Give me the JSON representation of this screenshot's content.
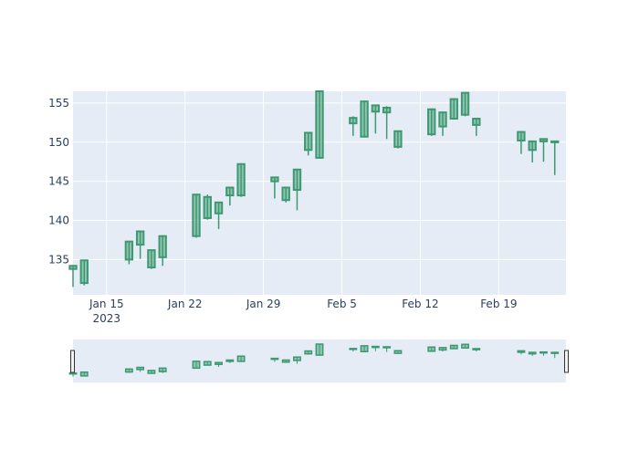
{
  "chart_data": {
    "type": "candlestick",
    "title": "",
    "xlabel": "",
    "ylabel": "",
    "x_range": [
      "2023-01-12",
      "2023-02-25"
    ],
    "ylim": [
      130.5,
      156.5
    ],
    "grid": true,
    "legend": "none",
    "rangeslider": true,
    "colors": {
      "plot_bg": "#e5ecf6",
      "grid": "#ffffff",
      "increasing_fill": "#3d9970",
      "increasing_line": "#3d9970",
      "tick_text": "#2a3f5f",
      "slider_bg": "#e5ecf6"
    },
    "y_ticks": [
      "135",
      "140",
      "145",
      "150",
      "155"
    ],
    "x_ticks": [
      {
        "date": "2023-01-15",
        "label": "Jan 15",
        "sublabel": "2023"
      },
      {
        "date": "2023-01-22",
        "label": "Jan 22",
        "sublabel": ""
      },
      {
        "date": "2023-01-29",
        "label": "Jan 29",
        "sublabel": ""
      },
      {
        "date": "2023-02-05",
        "label": "Feb 5",
        "sublabel": ""
      },
      {
        "date": "2023-02-12",
        "label": "Feb 12",
        "sublabel": ""
      },
      {
        "date": "2023-02-19",
        "label": "Feb 19",
        "sublabel": ""
      }
    ],
    "candles": [
      {
        "date": "2023-01-12",
        "open": 133.8,
        "high": 134.3,
        "low": 131.5,
        "close": 134.2
      },
      {
        "date": "2023-01-13",
        "open": 132.0,
        "high": 135.0,
        "low": 131.7,
        "close": 134.9
      },
      {
        "date": "2023-01-17",
        "open": 135.0,
        "high": 137.4,
        "low": 134.4,
        "close": 137.3
      },
      {
        "date": "2023-01-18",
        "open": 136.9,
        "high": 138.6,
        "low": 135.1,
        "close": 138.6
      },
      {
        "date": "2023-01-19",
        "open": 134.0,
        "high": 136.3,
        "low": 133.8,
        "close": 136.2
      },
      {
        "date": "2023-01-20",
        "open": 135.3,
        "high": 138.1,
        "low": 134.2,
        "close": 138.0
      },
      {
        "date": "2023-01-23",
        "open": 138.0,
        "high": 143.4,
        "low": 137.8,
        "close": 143.3
      },
      {
        "date": "2023-01-24",
        "open": 140.3,
        "high": 143.3,
        "low": 140.1,
        "close": 143.0
      },
      {
        "date": "2023-01-25",
        "open": 140.9,
        "high": 142.4,
        "low": 138.9,
        "close": 142.3
      },
      {
        "date": "2023-01-26",
        "open": 143.2,
        "high": 144.3,
        "low": 141.9,
        "close": 144.2
      },
      {
        "date": "2023-01-27",
        "open": 143.2,
        "high": 147.3,
        "low": 143.0,
        "close": 147.2
      },
      {
        "date": "2023-01-30",
        "open": 145.0,
        "high": 145.6,
        "low": 142.8,
        "close": 145.5
      },
      {
        "date": "2023-01-31",
        "open": 142.6,
        "high": 144.3,
        "low": 142.3,
        "close": 144.2
      },
      {
        "date": "2023-02-01",
        "open": 143.9,
        "high": 146.6,
        "low": 141.3,
        "close": 146.5
      },
      {
        "date": "2023-02-02",
        "open": 149.0,
        "high": 151.3,
        "low": 148.3,
        "close": 151.2
      },
      {
        "date": "2023-02-03",
        "open": 148.0,
        "high": 156.5,
        "low": 147.9,
        "close": 156.5
      },
      {
        "date": "2023-02-06",
        "open": 152.4,
        "high": 153.3,
        "low": 150.8,
        "close": 153.1
      },
      {
        "date": "2023-02-07",
        "open": 150.7,
        "high": 155.3,
        "low": 150.6,
        "close": 155.2
      },
      {
        "date": "2023-02-08",
        "open": 153.9,
        "high": 154.8,
        "low": 151.1,
        "close": 154.7
      },
      {
        "date": "2023-02-09",
        "open": 153.8,
        "high": 154.6,
        "low": 150.4,
        "close": 154.4
      },
      {
        "date": "2023-02-10",
        "open": 149.4,
        "high": 151.5,
        "low": 149.2,
        "close": 151.4
      },
      {
        "date": "2023-02-13",
        "open": 151.0,
        "high": 154.3,
        "low": 150.8,
        "close": 154.2
      },
      {
        "date": "2023-02-14",
        "open": 152.0,
        "high": 153.9,
        "low": 150.8,
        "close": 153.8
      },
      {
        "date": "2023-02-15",
        "open": 153.0,
        "high": 155.6,
        "low": 152.9,
        "close": 155.5
      },
      {
        "date": "2023-02-16",
        "open": 153.5,
        "high": 156.4,
        "low": 153.3,
        "close": 156.3
      },
      {
        "date": "2023-02-17",
        "open": 152.2,
        "high": 153.1,
        "low": 150.8,
        "close": 153.0
      },
      {
        "date": "2023-02-21",
        "open": 150.2,
        "high": 151.4,
        "low": 148.5,
        "close": 151.3
      },
      {
        "date": "2023-02-22",
        "open": 149.0,
        "high": 150.2,
        "low": 147.4,
        "close": 150.1
      },
      {
        "date": "2023-02-23",
        "open": 150.1,
        "high": 150.5,
        "low": 147.5,
        "close": 150.4
      },
      {
        "date": "2023-02-24",
        "open": 150.0,
        "high": 150.2,
        "low": 145.8,
        "close": 150.1
      }
    ]
  }
}
